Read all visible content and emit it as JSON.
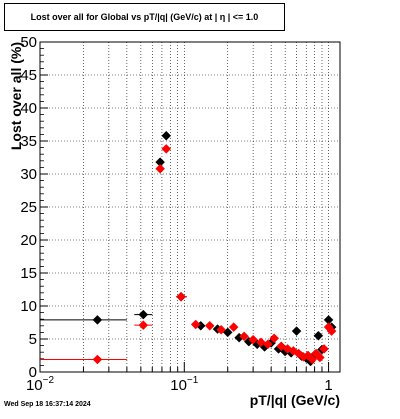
{
  "chart_data": {
    "type": "scatter",
    "title": "Lost over all for Global vs pT/|q| (GeV/c) at |  η  | <= 1.0",
    "xlabel": "pT/|q| (GeV/c)",
    "ylabel": "Lost over all (%)",
    "x_scale": "log",
    "xlim": [
      0.01,
      1.2
    ],
    "ylim": [
      0,
      50
    ],
    "grid": true,
    "x_tick_labels": [
      {
        "value": 0.01,
        "label": "10",
        "sup": "−2"
      },
      {
        "value": 0.1,
        "label": "10",
        "sup": "−1"
      },
      {
        "value": 1,
        "label": "1",
        "sup": ""
      }
    ],
    "y_ticks": [
      0,
      5,
      10,
      15,
      20,
      25,
      30,
      35,
      40,
      45,
      50
    ],
    "series": [
      {
        "color": "#000000",
        "points": [
          {
            "x": 0.025,
            "y": 7.9,
            "xlo": 0.01,
            "xhi": 0.04
          },
          {
            "x": 0.052,
            "y": 8.7,
            "xlo": 0.045,
            "xhi": 0.06
          },
          {
            "x": 0.068,
            "y": 31.8
          },
          {
            "x": 0.075,
            "y": 35.8
          },
          {
            "x": 0.095,
            "y": 11.4,
            "xlo": 0.088,
            "xhi": 0.104
          },
          {
            "x": 0.13,
            "y": 7.0
          },
          {
            "x": 0.17,
            "y": 6.5
          },
          {
            "x": 0.2,
            "y": 6.0
          },
          {
            "x": 0.24,
            "y": 5.2
          },
          {
            "x": 0.28,
            "y": 4.6
          },
          {
            "x": 0.32,
            "y": 4.2
          },
          {
            "x": 0.36,
            "y": 3.8
          },
          {
            "x": 0.4,
            "y": 4.4
          },
          {
            "x": 0.45,
            "y": 3.5
          },
          {
            "x": 0.5,
            "y": 3.1
          },
          {
            "x": 0.55,
            "y": 2.9
          },
          {
            "x": 0.6,
            "y": 6.2
          },
          {
            "x": 0.65,
            "y": 2.4
          },
          {
            "x": 0.7,
            "y": 2.1
          },
          {
            "x": 0.75,
            "y": 1.6
          },
          {
            "x": 0.8,
            "y": 2.6
          },
          {
            "x": 0.85,
            "y": 5.5
          },
          {
            "x": 0.9,
            "y": 3.4
          },
          {
            "x": 1.0,
            "y": 7.9
          },
          {
            "x": 1.05,
            "y": 6.8
          }
        ]
      },
      {
        "color": "#ff0000",
        "points": [
          {
            "x": 0.025,
            "y": 1.9,
            "xlo": 0.01,
            "xhi": 0.04
          },
          {
            "x": 0.052,
            "y": 7.1,
            "xlo": 0.045,
            "xhi": 0.06
          },
          {
            "x": 0.068,
            "y": 30.8
          },
          {
            "x": 0.075,
            "y": 33.8
          },
          {
            "x": 0.095,
            "y": 11.4,
            "xlo": 0.088,
            "xhi": 0.104
          },
          {
            "x": 0.12,
            "y": 7.2
          },
          {
            "x": 0.15,
            "y": 7.0
          },
          {
            "x": 0.18,
            "y": 6.4
          },
          {
            "x": 0.22,
            "y": 6.8
          },
          {
            "x": 0.26,
            "y": 5.4
          },
          {
            "x": 0.3,
            "y": 4.9
          },
          {
            "x": 0.34,
            "y": 4.5
          },
          {
            "x": 0.38,
            "y": 4.2
          },
          {
            "x": 0.42,
            "y": 5.1
          },
          {
            "x": 0.47,
            "y": 3.9
          },
          {
            "x": 0.52,
            "y": 3.5
          },
          {
            "x": 0.57,
            "y": 3.2
          },
          {
            "x": 0.62,
            "y": 2.8
          },
          {
            "x": 0.67,
            "y": 2.3
          },
          {
            "x": 0.72,
            "y": 2.5
          },
          {
            "x": 0.77,
            "y": 1.9
          },
          {
            "x": 0.82,
            "y": 2.8
          },
          {
            "x": 0.87,
            "y": 2.2
          },
          {
            "x": 0.93,
            "y": 3.5
          },
          {
            "x": 1.0,
            "y": 6.8
          },
          {
            "x": 1.05,
            "y": 6.2
          }
        ]
      }
    ]
  },
  "timestamp": "Wed Sep 18 16:37:14 2024"
}
